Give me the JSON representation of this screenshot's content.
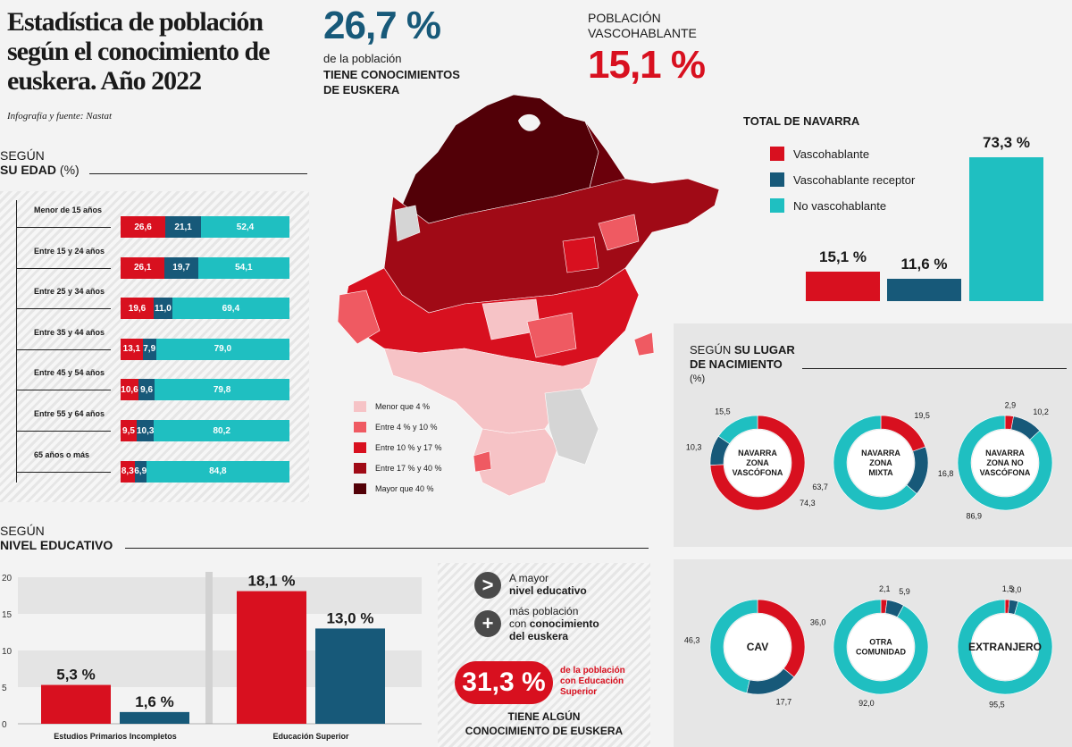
{
  "header": {
    "title": "Estadística de población según el conocimiento de euskera. Año 2022",
    "credit": "Infografía y fuente: Nastat",
    "stat1_value": "26,7 %",
    "stat1_line1": "de la población",
    "stat1_line2": "TIENE CONOCIMIENTOS",
    "stat1_line3": "DE EUSKERA",
    "stat2_label1": "POBLACIÓN",
    "stat2_label2": "VASCOHABLANTE",
    "stat2_value": "15,1 %"
  },
  "colors": {
    "red": "#d8101f",
    "blue": "#175979",
    "teal": "#1fbfc1",
    "dark_text": "#175979"
  },
  "age_section": {
    "label_line1": "SEGÚN",
    "label_bold": "SU EDAD",
    "label_unit": "(%)"
  },
  "total_section": {
    "title": "TOTAL DE NAVARRA",
    "legend": [
      "Vascohablante",
      "Vascohablante receptor",
      "No vascohablante"
    ]
  },
  "map_legend": [
    "Menor que 4 %",
    "Entre 4 % y 10 %",
    "Entre 10 % y 17 %",
    "Entre 17 % y 40 %",
    "Mayor que 40 %"
  ],
  "map_legend_colors": [
    "#f6c3c6",
    "#ef5a62",
    "#d8101f",
    "#a00a16",
    "#520007"
  ],
  "birth_section": {
    "label_line1": "SEGÚN",
    "label_bold1": "SU LUGAR",
    "label_bold2": "DE NACIMIENTO",
    "label_unit": "(%)"
  },
  "edu_section": {
    "label_line1": "SEGÚN",
    "label_bold": "NIVEL EDUCATIVO"
  },
  "callout": {
    "arrow_symbol": ">",
    "plus_symbol": "+",
    "line1": "A mayor",
    "line1_bold": "nivel educativo",
    "line2a": "más población",
    "line2b": "con",
    "line2b_bold": "conocimiento",
    "line2c_bold": "del euskera",
    "pill_value": "31,3 %",
    "pill_note1": "de la población",
    "pill_note2": "con Educación",
    "pill_note3": "Superior",
    "footer1": "TIENE ALGÚN",
    "footer2": "CONOCIMIENTO DE EUSKERA"
  },
  "chart_data": [
    {
      "id": "age",
      "type": "bar",
      "stacked": true,
      "orientation": "horizontal",
      "title": "SEGÚN SU EDAD (%)",
      "categories": [
        "Menor de 15 años",
        "Entre 15 y 24 años",
        "Entre 25 y 34 años",
        "Entre 35 y 44 años",
        "Entre 45 y 54 años",
        "Entre 55 y 64 años",
        "65 años o más"
      ],
      "series": [
        {
          "name": "Vascohablante",
          "values": [
            26.6,
            26.1,
            19.6,
            13.1,
            10.6,
            9.5,
            8.3
          ],
          "labels": [
            "26,6",
            "26,1",
            "19,6",
            "13,1",
            "10,6",
            "9,5",
            "8,3"
          ]
        },
        {
          "name": "Vascohablante receptor",
          "values": [
            21.1,
            19.7,
            11.0,
            7.9,
            9.6,
            10.3,
            6.9
          ],
          "labels": [
            "21,1",
            "19,7",
            "11,0",
            "7,9",
            "9,6",
            "10,3",
            "6,9"
          ]
        },
        {
          "name": "No vascohablante",
          "values": [
            52.4,
            54.1,
            69.4,
            79.0,
            79.8,
            80.2,
            84.8
          ],
          "labels": [
            "52,4",
            "54,1",
            "69,4",
            "79,0",
            "79,8",
            "80,2",
            "84,8"
          ]
        }
      ]
    },
    {
      "id": "total",
      "type": "bar",
      "title": "TOTAL DE NAVARRA",
      "categories": [
        "Vascohablante",
        "Vascohablante receptor",
        "No vascohablante"
      ],
      "values": [
        15.1,
        11.6,
        73.3
      ],
      "labels": [
        "15,1 %",
        "11,6 %",
        "73,3 %"
      ],
      "ylim": [
        0,
        73.3
      ]
    },
    {
      "id": "education",
      "type": "bar",
      "title": "SEGÚN NIVEL EDUCATIVO",
      "categories": [
        "Estudios Primarios Incompletos",
        "Educación Superior"
      ],
      "series": [
        {
          "name": "Vascohablante",
          "values": [
            5.3,
            18.1
          ],
          "labels": [
            "5,3 %",
            "18,1 %"
          ]
        },
        {
          "name": "Vascohablante receptor",
          "values": [
            1.6,
            13.0
          ],
          "labels": [
            "1,6 %",
            "13,0 %"
          ]
        }
      ],
      "yticks": [
        "20",
        "15",
        "10",
        "5",
        "0"
      ],
      "ylim": [
        0,
        20
      ]
    },
    {
      "id": "birth",
      "type": "pie",
      "donut": true,
      "title": "SEGÚN SU LUGAR DE NACIMIENTO (%)",
      "charts": [
        {
          "name_lines": [
            "NAVARRA",
            "ZONA",
            "VASCÓFONA"
          ],
          "values": [
            74.3,
            10.3,
            15.5
          ],
          "labels": [
            "74,3",
            "10,3",
            "15,5"
          ]
        },
        {
          "name_lines": [
            "NAVARRA",
            "ZONA",
            "MIXTA"
          ],
          "values": [
            19.5,
            16.8,
            63.7
          ],
          "labels": [
            "19,5",
            "16,8",
            "63,7"
          ]
        },
        {
          "name_lines": [
            "NAVARRA",
            "ZONA NO",
            "VASCÓFONA"
          ],
          "values": [
            2.9,
            10.2,
            86.9
          ],
          "labels": [
            "2,9",
            "10,2",
            "86,9"
          ]
        },
        {
          "name_lines": [
            "CAV"
          ],
          "values": [
            36.0,
            17.7,
            46.3
          ],
          "labels": [
            "36,0",
            "17,7",
            "46,3"
          ]
        },
        {
          "name_lines": [
            "OTRA",
            "COMUNIDAD"
          ],
          "values": [
            2.1,
            5.9,
            92.0
          ],
          "labels": [
            "2,1",
            "5,9",
            "92,0"
          ]
        },
        {
          "name_lines": [
            "EXTRANJERO"
          ],
          "values": [
            1.5,
            3.0,
            95.5
          ],
          "labels": [
            "1,5",
            "3,0",
            "95,5"
          ]
        }
      ]
    }
  ]
}
